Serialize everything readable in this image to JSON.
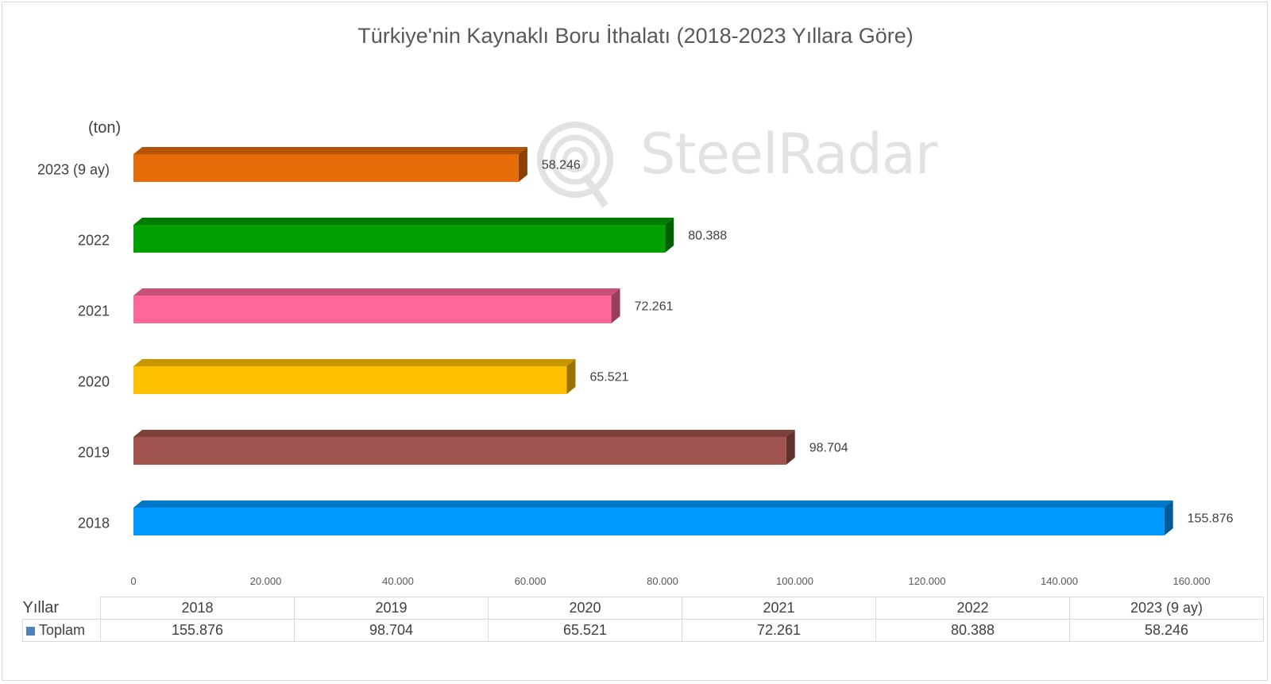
{
  "chart_data": {
    "type": "bar",
    "orientation": "horizontal",
    "title": "Türkiye'nin Kaynaklı Boru İthalatı (2018-2023 Yıllara Göre)",
    "unit": "(ton)",
    "categories": [
      "2018",
      "2019",
      "2020",
      "2021",
      "2022",
      "2023 (9 ay)"
    ],
    "series": [
      {
        "name": "Toplam",
        "values": [
          155876,
          98704,
          65521,
          72261,
          80388,
          58246
        ],
        "value_labels": [
          "155.876",
          "98.704",
          "65.521",
          "72.261",
          "80.388",
          "58.246"
        ],
        "colors": [
          "#0099FF",
          "#A0524E",
          "#FFC000",
          "#FF6699",
          "#00A000",
          "#E66C0A"
        ]
      }
    ],
    "xlim": [
      0,
      160000
    ],
    "x_ticks": [
      0,
      20000,
      40000,
      60000,
      80000,
      100000,
      120000,
      140000,
      160000
    ],
    "x_tick_labels": [
      "0",
      "20.000",
      "40.000",
      "60.000",
      "80.000",
      "100.000",
      "120.000",
      "140.000",
      "160.000"
    ],
    "grid": false,
    "legend": "table-below"
  },
  "data_table": {
    "header_label": "Yıllar",
    "series_label": "Toplam",
    "series_color": "#4F81BD",
    "columns": [
      "2018",
      "2019",
      "2020",
      "2021",
      "2022",
      "2023 (9 ay)"
    ],
    "values": [
      "155.876",
      "98.704",
      "65.521",
      "72.261",
      "80.388",
      "58.246"
    ]
  },
  "watermark": {
    "text": "SteelRadar",
    "icon": "radar-signal-icon"
  }
}
